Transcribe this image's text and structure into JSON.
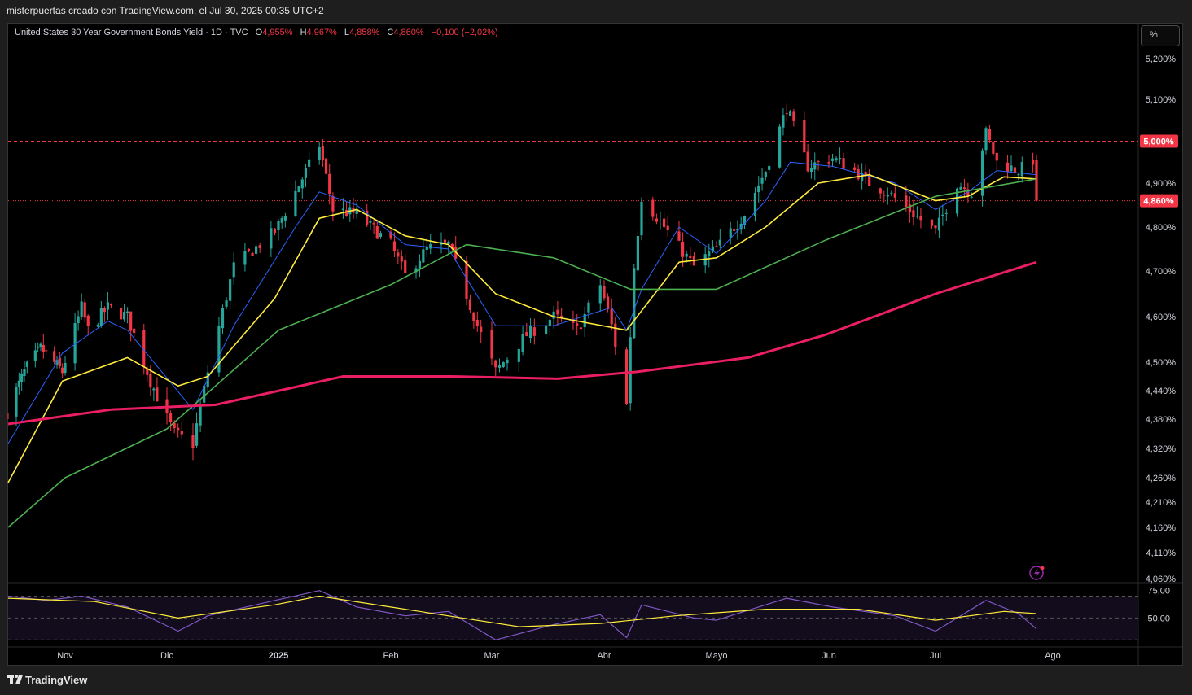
{
  "header": {
    "caption": "misterpuertas creado con TradingView.com, el Jul 30, 2025 00:35 UTC+2"
  },
  "legend": {
    "symbol": "United States 30 Year Government Bonds Yield · 1D · TVC",
    "open_label": "O",
    "open": "4,955%",
    "high_label": "H",
    "high": "4,967%",
    "low_label": "L",
    "low": "4,858%",
    "close_label": "C",
    "close": "4,860%",
    "change": "−0,100 (−2,02%)"
  },
  "scale_button": "%",
  "footer": {
    "brand": "TradingView",
    "logo": "tradingview-logo-icon"
  },
  "colors": {
    "up": "#26a69a",
    "down": "#f23645",
    "ema_fast": "#2962ff",
    "ema_mid": "#ffeb3b",
    "ema_slow": "#4caf50",
    "ema_long": "#e91e63",
    "rsi": "#7e57c2",
    "rsi_ma": "#ffeb3b",
    "background": "#000000"
  },
  "chart_data": [
    {
      "type": "candlestick",
      "title": "",
      "y_axis": {
        "position": "right",
        "scale": "log",
        "ticks": [
          "5,200%",
          "5,100%",
          "4,900%",
          "4,800%",
          "4,700%",
          "4,600%",
          "4,500%",
          "4,440%",
          "4,380%",
          "4,320%",
          "4,260%",
          "4,210%",
          "4,160%",
          "4,110%",
          "4,060%"
        ],
        "tick_values": [
          5.2,
          5.1,
          4.9,
          4.8,
          4.7,
          4.6,
          4.5,
          4.44,
          4.38,
          4.32,
          4.26,
          4.21,
          4.16,
          4.11,
          4.06
        ],
        "range": [
          4.05,
          5.24
        ]
      },
      "x_axis": {
        "ticks": [
          "Nov",
          "Dic",
          "2025",
          "Feb",
          "Mar",
          "Abr",
          "Mayo",
          "Jun",
          "Jul",
          "Ago"
        ],
        "tick_dates": [
          "2024-11-01",
          "2024-12-02",
          "2025-01-01",
          "2025-02-03",
          "2025-03-03",
          "2025-04-01",
          "2025-05-01",
          "2025-06-02",
          "2025-07-01",
          "2025-08-01"
        ],
        "range": [
          "2024-10-11",
          "2025-08-24"
        ]
      },
      "price_lines": [
        {
          "label": "5,000%",
          "value": 5.0,
          "style": "dashed"
        },
        {
          "label": "4,860%",
          "value": 4.86,
          "style": "dotted"
        }
      ],
      "candle_path_anchors": [
        {
          "date": "2024-10-11",
          "close": 4.4
        },
        {
          "date": "2024-10-17",
          "close": 4.48
        },
        {
          "date": "2024-10-23",
          "close": 4.53
        },
        {
          "date": "2024-10-31",
          "close": 4.48
        },
        {
          "date": "2024-11-06",
          "close": 4.62
        },
        {
          "date": "2024-11-08",
          "close": 4.57
        },
        {
          "date": "2024-11-14",
          "close": 4.62
        },
        {
          "date": "2024-11-20",
          "close": 4.6
        },
        {
          "date": "2024-11-27",
          "close": 4.46
        },
        {
          "date": "2024-12-04",
          "close": 4.35
        },
        {
          "date": "2024-12-09",
          "close": 4.33
        },
        {
          "date": "2024-12-13",
          "close": 4.48
        },
        {
          "date": "2024-12-20",
          "close": 4.71
        },
        {
          "date": "2024-12-31",
          "close": 4.79
        },
        {
          "date": "2025-01-06",
          "close": 4.88
        },
        {
          "date": "2025-01-13",
          "close": 4.99
        },
        {
          "date": "2025-01-17",
          "close": 4.84
        },
        {
          "date": "2025-01-24",
          "close": 4.83
        },
        {
          "date": "2025-02-03",
          "close": 4.76
        },
        {
          "date": "2025-02-07",
          "close": 4.69
        },
        {
          "date": "2025-02-13",
          "close": 4.75
        },
        {
          "date": "2025-02-19",
          "close": 4.76
        },
        {
          "date": "2025-02-27",
          "close": 4.58
        },
        {
          "date": "2025-03-04",
          "close": 4.48
        },
        {
          "date": "2025-03-12",
          "close": 4.56
        },
        {
          "date": "2025-03-19",
          "close": 4.6
        },
        {
          "date": "2025-03-25",
          "close": 4.57
        },
        {
          "date": "2025-03-31",
          "close": 4.67
        },
        {
          "date": "2025-04-03",
          "close": 4.58
        },
        {
          "date": "2025-04-07",
          "close": 4.41
        },
        {
          "date": "2025-04-09",
          "close": 4.71
        },
        {
          "date": "2025-04-11",
          "close": 4.87
        },
        {
          "date": "2025-04-17",
          "close": 4.8
        },
        {
          "date": "2025-04-25",
          "close": 4.71
        },
        {
          "date": "2025-05-02",
          "close": 4.76
        },
        {
          "date": "2025-05-09",
          "close": 4.83
        },
        {
          "date": "2025-05-15",
          "close": 4.93
        },
        {
          "date": "2025-05-21",
          "close": 5.08
        },
        {
          "date": "2025-05-27",
          "close": 4.94
        },
        {
          "date": "2025-06-03",
          "close": 4.96
        },
        {
          "date": "2025-06-09",
          "close": 4.93
        },
        {
          "date": "2025-06-13",
          "close": 4.9
        },
        {
          "date": "2025-06-18",
          "close": 4.88
        },
        {
          "date": "2025-06-25",
          "close": 4.83
        },
        {
          "date": "2025-07-01",
          "close": 4.79
        },
        {
          "date": "2025-07-07",
          "close": 4.9
        },
        {
          "date": "2025-07-11",
          "close": 4.88
        },
        {
          "date": "2025-07-15",
          "close": 5.02
        },
        {
          "date": "2025-07-18",
          "close": 4.95
        },
        {
          "date": "2025-07-24",
          "close": 4.93
        },
        {
          "date": "2025-07-28",
          "close": 4.955
        }
      ],
      "last_candle": {
        "date": "2025-07-29",
        "open": 4.955,
        "high": 4.967,
        "low": 4.858,
        "close": 4.86
      },
      "moving_averages": [
        {
          "color_key": "ema_fast",
          "points": [
            [
              "2024-10-11",
              4.33
            ],
            [
              "2024-10-31",
              4.52
            ],
            [
              "2024-11-14",
              4.59
            ],
            [
              "2024-11-20",
              4.57
            ],
            [
              "2024-12-09",
              4.4
            ],
            [
              "2024-12-20",
              4.58
            ],
            [
              "2025-01-06",
              4.8
            ],
            [
              "2025-01-13",
              4.88
            ],
            [
              "2025-01-24",
              4.85
            ],
            [
              "2025-02-07",
              4.76
            ],
            [
              "2025-02-19",
              4.75
            ],
            [
              "2025-03-04",
              4.58
            ],
            [
              "2025-03-19",
              4.58
            ],
            [
              "2025-04-03",
              4.62
            ],
            [
              "2025-04-07",
              4.57
            ],
            [
              "2025-04-11",
              4.66
            ],
            [
              "2025-04-21",
              4.8
            ],
            [
              "2025-05-01",
              4.74
            ],
            [
              "2025-05-15",
              4.86
            ],
            [
              "2025-05-22",
              4.95
            ],
            [
              "2025-06-03",
              4.94
            ],
            [
              "2025-06-20",
              4.9
            ],
            [
              "2025-07-01",
              4.84
            ],
            [
              "2025-07-10",
              4.88
            ],
            [
              "2025-07-18",
              4.93
            ],
            [
              "2025-07-29",
              4.92
            ]
          ]
        },
        {
          "color_key": "ema_mid",
          "points": [
            [
              "2024-10-11",
              4.25
            ],
            [
              "2024-10-31",
              4.46
            ],
            [
              "2024-11-20",
              4.51
            ],
            [
              "2024-12-05",
              4.45
            ],
            [
              "2024-12-13",
              4.47
            ],
            [
              "2024-12-31",
              4.64
            ],
            [
              "2025-01-13",
              4.82
            ],
            [
              "2025-01-24",
              4.84
            ],
            [
              "2025-02-07",
              4.78
            ],
            [
              "2025-02-19",
              4.76
            ],
            [
              "2025-03-04",
              4.65
            ],
            [
              "2025-03-19",
              4.6
            ],
            [
              "2025-04-07",
              4.57
            ],
            [
              "2025-04-21",
              4.72
            ],
            [
              "2025-05-01",
              4.73
            ],
            [
              "2025-05-15",
              4.8
            ],
            [
              "2025-05-30",
              4.9
            ],
            [
              "2025-06-13",
              4.92
            ],
            [
              "2025-07-01",
              4.86
            ],
            [
              "2025-07-10",
              4.87
            ],
            [
              "2025-07-20",
              4.915
            ],
            [
              "2025-07-29",
              4.91
            ]
          ]
        },
        {
          "color_key": "ema_slow",
          "points": [
            [
              "2024-10-11",
              4.16
            ],
            [
              "2024-11-01",
              4.26
            ],
            [
              "2024-12-02",
              4.36
            ],
            [
              "2025-01-01",
              4.57
            ],
            [
              "2025-02-03",
              4.67
            ],
            [
              "2025-02-24",
              4.76
            ],
            [
              "2025-03-19",
              4.73
            ],
            [
              "2025-04-08",
              4.66
            ],
            [
              "2025-05-01",
              4.66
            ],
            [
              "2025-06-01",
              4.77
            ],
            [
              "2025-07-01",
              4.87
            ],
            [
              "2025-07-29",
              4.91
            ]
          ]
        },
        {
          "color_key": "ema_long",
          "points": [
            [
              "2024-10-11",
              4.37
            ],
            [
              "2024-11-15",
              4.4
            ],
            [
              "2024-12-15",
              4.41
            ],
            [
              "2025-01-20",
              4.47
            ],
            [
              "2025-02-20",
              4.47
            ],
            [
              "2025-03-20",
              4.465
            ],
            [
              "2025-04-10",
              4.48
            ],
            [
              "2025-05-10",
              4.51
            ],
            [
              "2025-06-01",
              4.56
            ],
            [
              "2025-07-01",
              4.65
            ],
            [
              "2025-07-29",
              4.72
            ]
          ]
        }
      ]
    },
    {
      "type": "line",
      "title": "",
      "indicator": "RSI",
      "y_axis": {
        "ticks": [
          "75,00",
          "50,00"
        ],
        "tick_values": [
          75,
          50
        ],
        "range": [
          25,
          80
        ],
        "bands": [
          70,
          50,
          30
        ]
      },
      "series": [
        {
          "color_key": "rsi",
          "values_by_date": [
            [
              "2024-10-11",
              70
            ],
            [
              "2024-10-25",
              66
            ],
            [
              "2024-11-06",
              70
            ],
            [
              "2024-11-20",
              60
            ],
            [
              "2024-12-05",
              38
            ],
            [
              "2024-12-13",
              52
            ],
            [
              "2024-12-31",
              66
            ],
            [
              "2025-01-13",
              75
            ],
            [
              "2025-01-24",
              60
            ],
            [
              "2025-02-07",
              52
            ],
            [
              "2025-02-19",
              56
            ],
            [
              "2025-03-04",
              30
            ],
            [
              "2025-03-19",
              44
            ],
            [
              "2025-03-31",
              53
            ],
            [
              "2025-04-07",
              32
            ],
            [
              "2025-04-11",
              62
            ],
            [
              "2025-04-25",
              50
            ],
            [
              "2025-05-01",
              48
            ],
            [
              "2025-05-21",
              68
            ],
            [
              "2025-06-03",
              60
            ],
            [
              "2025-06-20",
              52
            ],
            [
              "2025-07-01",
              38
            ],
            [
              "2025-07-15",
              66
            ],
            [
              "2025-07-24",
              54
            ],
            [
              "2025-07-29",
              40
            ]
          ]
        },
        {
          "color_key": "rsi_ma",
          "values_by_date": [
            [
              "2024-10-11",
              68
            ],
            [
              "2024-11-10",
              65
            ],
            [
              "2024-12-05",
              50
            ],
            [
              "2024-12-31",
              62
            ],
            [
              "2025-01-13",
              70
            ],
            [
              "2025-02-07",
              58
            ],
            [
              "2025-03-10",
              42
            ],
            [
              "2025-03-31",
              45
            ],
            [
              "2025-04-20",
              52
            ],
            [
              "2025-05-15",
              58
            ],
            [
              "2025-06-10",
              58
            ],
            [
              "2025-07-01",
              48
            ],
            [
              "2025-07-20",
              56
            ],
            [
              "2025-07-29",
              54
            ]
          ]
        }
      ]
    }
  ],
  "alert_icon": "lightning-alert-icon"
}
